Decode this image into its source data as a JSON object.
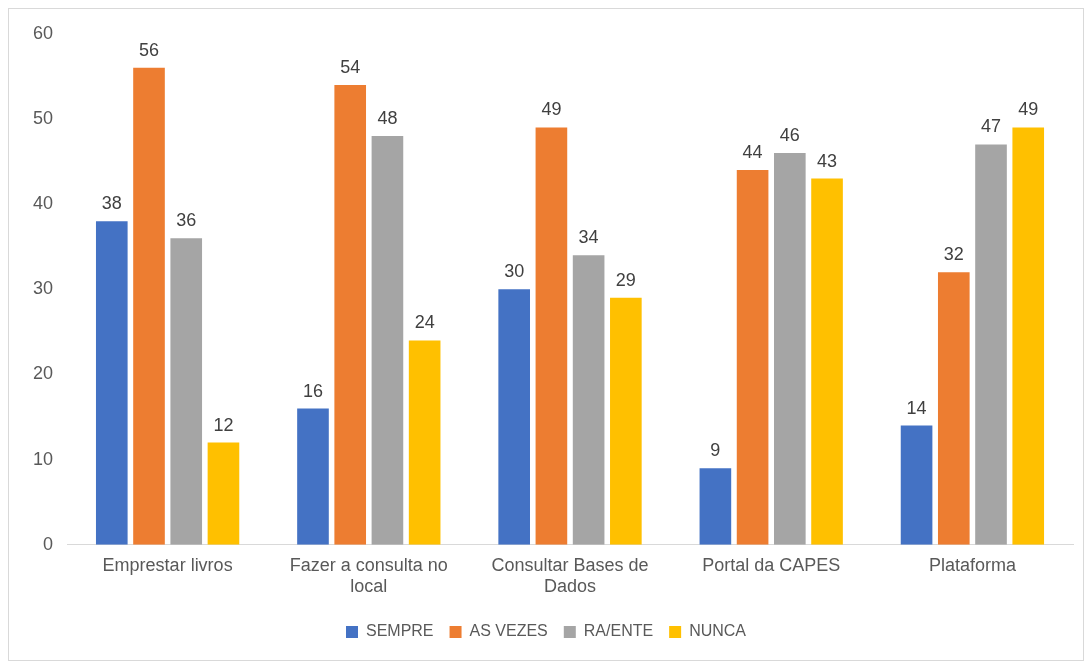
{
  "chart_data": {
    "type": "bar",
    "categories": [
      "Emprestar livros",
      "Fazer a consulta no local",
      "Consultar Bases de Dados",
      "Portal da CAPES",
      "Plataforma"
    ],
    "series": [
      {
        "name": "SEMPRE",
        "color": "#4472c4",
        "values": [
          38,
          16,
          30,
          9,
          14
        ]
      },
      {
        "name": "AS VEZES",
        "color": "#ed7d31",
        "values": [
          56,
          54,
          49,
          44,
          32
        ]
      },
      {
        "name": "RA/ENTE",
        "color": "#a5a5a5",
        "values": [
          36,
          48,
          34,
          46,
          47
        ]
      },
      {
        "name": "NUNCA",
        "color": "#ffc000",
        "values": [
          12,
          24,
          29,
          43,
          49
        ]
      }
    ],
    "ylim": [
      0,
      60
    ],
    "yticks": [
      0,
      10,
      20,
      30,
      40,
      50,
      60
    ],
    "grid": false,
    "legend": "bottom",
    "data_labels": true
  }
}
